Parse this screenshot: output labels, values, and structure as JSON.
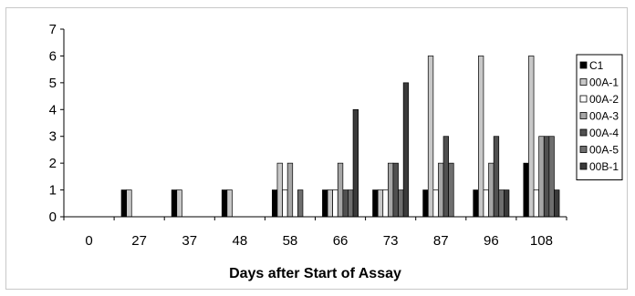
{
  "chart_data": {
    "type": "bar",
    "title": "",
    "xlabel": "Days after Start of Assay",
    "ylabel": "",
    "ylim": [
      0,
      7
    ],
    "yticks": [
      0,
      1,
      2,
      3,
      4,
      5,
      6,
      7
    ],
    "grid": false,
    "legend_position": "right",
    "categories": [
      "0",
      "27",
      "37",
      "48",
      "58",
      "66",
      "73",
      "87",
      "96",
      "108"
    ],
    "series": [
      {
        "name": "C1",
        "color": "#000000",
        "values": [
          0,
          1,
          1,
          1,
          1,
          1,
          1,
          1,
          1,
          2
        ]
      },
      {
        "name": "00A-1",
        "color": "#c8c8c8",
        "values": [
          0,
          1,
          1,
          1,
          2,
          1,
          1,
          6,
          6,
          6
        ]
      },
      {
        "name": "00A-2",
        "color": "#ffffff",
        "values": [
          0,
          0,
          0,
          0,
          1,
          1,
          1,
          1,
          1,
          1
        ]
      },
      {
        "name": "00A-3",
        "color": "#a6a6a6",
        "values": [
          0,
          0,
          0,
          0,
          2,
          2,
          2,
          2,
          2,
          3
        ]
      },
      {
        "name": "00A-4",
        "color": "#505050",
        "values": [
          0,
          0,
          0,
          0,
          0,
          1,
          2,
          3,
          3,
          3
        ]
      },
      {
        "name": "00A-5",
        "color": "#6e6e6e",
        "values": [
          0,
          0,
          0,
          0,
          1,
          1,
          1,
          2,
          1,
          3
        ]
      },
      {
        "name": "00B-1",
        "color": "#3a3a3a",
        "values": [
          0,
          0,
          0,
          0,
          0,
          4,
          5,
          0,
          1,
          1
        ]
      }
    ]
  }
}
